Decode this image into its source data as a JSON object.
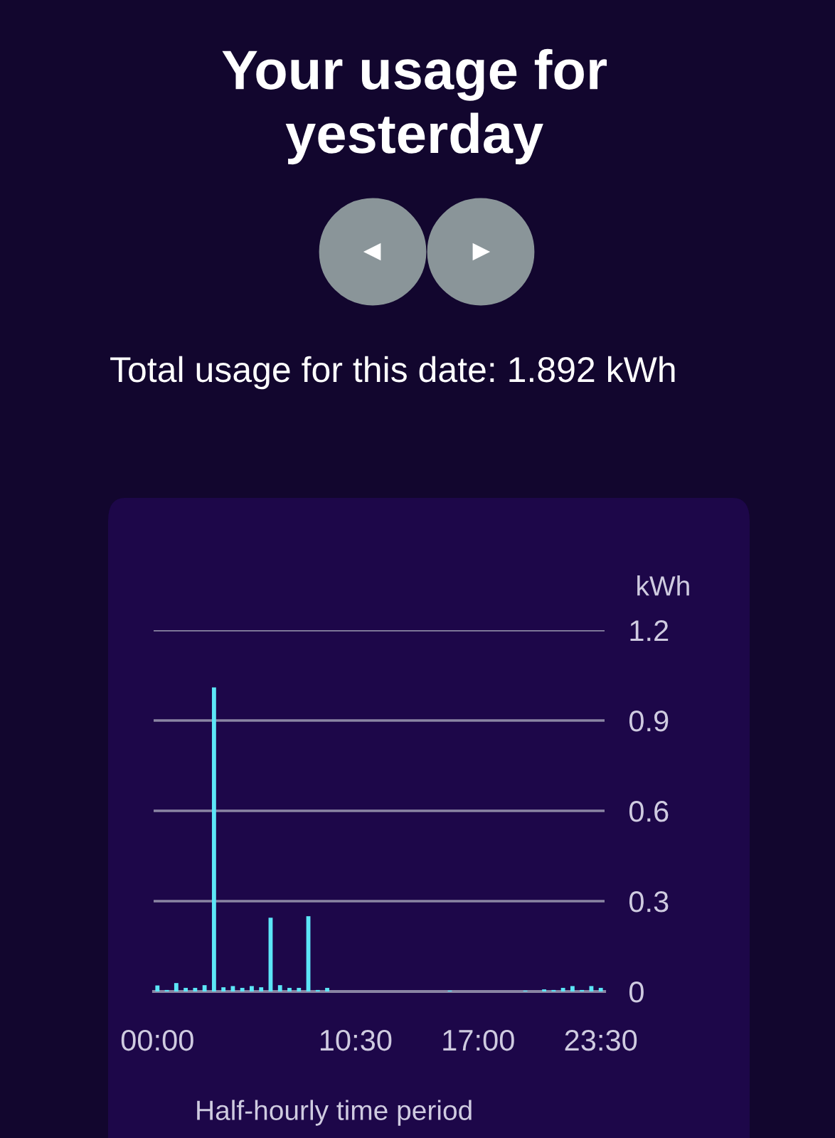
{
  "chart_data": {
    "type": "bar",
    "title": "Your usage for yesterday",
    "subtitle": "Total usage for this date: 1.892 kWh",
    "xlabel": "Half-hourly time period",
    "ylabel": "kWh",
    "x": [
      0,
      0.5,
      1,
      1.5,
      2,
      2.5,
      3,
      3.5,
      4,
      4.5,
      5,
      5.5,
      6,
      6.5,
      7,
      7.5,
      8,
      8.5,
      9,
      9.5,
      10,
      10.5,
      11,
      11.5,
      12,
      12.5,
      13,
      13.5,
      14,
      14.5,
      15,
      15.5,
      16,
      16.5,
      17,
      17.5,
      18,
      18.5,
      19,
      19.5,
      20,
      20.5,
      21,
      21.5,
      22,
      22.5,
      23,
      23.5
    ],
    "values": [
      0.02,
      0.005,
      0.028,
      0.012,
      0.012,
      0.021,
      1.01,
      0.014,
      0.018,
      0.012,
      0.018,
      0.014,
      0.245,
      0.021,
      0.012,
      0.012,
      0.25,
      0.005,
      0.012,
      0,
      0,
      0,
      0,
      0,
      0,
      0,
      0,
      0,
      0,
      0,
      0,
      0.003,
      0,
      0,
      0,
      0,
      0,
      0,
      0,
      0.003,
      0,
      0.007,
      0.005,
      0.012,
      0.018,
      0.005,
      0.018,
      0.012
    ],
    "color": "#5ce6f7",
    "xlim": [
      -0.2,
      23.7
    ],
    "xticks": [
      {
        "value": 0,
        "label": "00:00"
      },
      {
        "value": 10.5,
        "label": "10:30"
      },
      {
        "value": 17,
        "label": "17:00"
      },
      {
        "value": 23.5,
        "label": "23:30"
      }
    ],
    "ylim": [
      0,
      1.2
    ],
    "yticks": [
      0,
      0.3,
      0.6,
      0.9,
      1.2
    ],
    "grid": "y",
    "legend": false
  }
}
